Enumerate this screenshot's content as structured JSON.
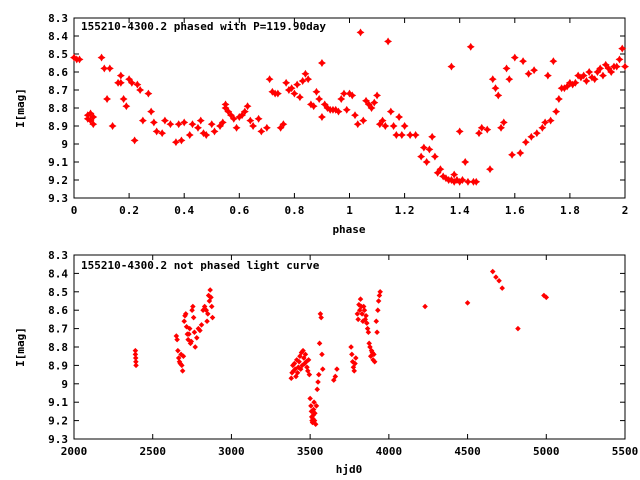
{
  "chart_data": [
    {
      "type": "scatter",
      "title": "155210-4300.2 phased with P=119.90day",
      "xlabel": "phase",
      "ylabel": "I[mag]",
      "xlim": [
        0,
        2
      ],
      "ylim": [
        9.3,
        8.3
      ],
      "y_inverted": true,
      "xticks": [
        0,
        0.2,
        0.4,
        0.6,
        0.8,
        1,
        1.2,
        1.4,
        1.6,
        1.8,
        2
      ],
      "xtick_labels": [
        "0",
        "0.2",
        "0.4",
        "0.6",
        "0.8",
        "1",
        "1.2",
        "1.4",
        "1.6",
        "1.8",
        "2"
      ],
      "yticks": [
        8.3,
        8.4,
        8.5,
        8.6,
        8.7,
        8.8,
        8.9,
        9,
        9.1,
        9.2,
        9.3
      ],
      "ytick_labels": [
        "8.3",
        "8.4",
        "8.5",
        "8.6",
        "8.7",
        "8.8",
        "8.9",
        "9",
        "9.1",
        "9.2",
        "9.3"
      ],
      "grid": false,
      "marker_color": "#ff0000",
      "points": [
        [
          0.0,
          8.52
        ],
        [
          0.01,
          8.53
        ],
        [
          0.02,
          8.53
        ],
        [
          0.05,
          8.84
        ],
        [
          0.05,
          8.86
        ],
        [
          0.06,
          8.83
        ],
        [
          0.06,
          8.87
        ],
        [
          0.07,
          8.89
        ],
        [
          0.07,
          8.85
        ],
        [
          0.1,
          8.52
        ],
        [
          0.11,
          8.58
        ],
        [
          0.12,
          8.75
        ],
        [
          0.13,
          8.58
        ],
        [
          0.14,
          8.9
        ],
        [
          0.16,
          8.66
        ],
        [
          0.17,
          8.62
        ],
        [
          0.17,
          8.66
        ],
        [
          0.18,
          8.75
        ],
        [
          0.19,
          8.79
        ],
        [
          0.2,
          8.64
        ],
        [
          0.21,
          8.66
        ],
        [
          0.22,
          8.98
        ],
        [
          0.23,
          8.67
        ],
        [
          0.24,
          8.7
        ],
        [
          0.25,
          8.87
        ],
        [
          0.27,
          8.72
        ],
        [
          0.28,
          8.82
        ],
        [
          0.29,
          8.88
        ],
        [
          0.3,
          8.93
        ],
        [
          0.32,
          8.94
        ],
        [
          0.33,
          8.87
        ],
        [
          0.35,
          8.89
        ],
        [
          0.37,
          8.99
        ],
        [
          0.38,
          8.89
        ],
        [
          0.39,
          8.98
        ],
        [
          0.4,
          8.88
        ],
        [
          0.42,
          8.95
        ],
        [
          0.43,
          8.89
        ],
        [
          0.45,
          8.91
        ],
        [
          0.46,
          8.87
        ],
        [
          0.47,
          8.94
        ],
        [
          0.48,
          8.95
        ],
        [
          0.5,
          8.89
        ],
        [
          0.51,
          8.93
        ],
        [
          0.53,
          8.9
        ],
        [
          0.54,
          8.88
        ],
        [
          0.55,
          8.78
        ],
        [
          0.55,
          8.8
        ],
        [
          0.56,
          8.82
        ],
        [
          0.57,
          8.84
        ],
        [
          0.58,
          8.86
        ],
        [
          0.59,
          8.91
        ],
        [
          0.6,
          8.85
        ],
        [
          0.61,
          8.84
        ],
        [
          0.62,
          8.82
        ],
        [
          0.63,
          8.79
        ],
        [
          0.64,
          8.87
        ],
        [
          0.65,
          8.9
        ],
        [
          0.67,
          8.86
        ],
        [
          0.68,
          8.93
        ],
        [
          0.7,
          8.91
        ],
        [
          0.71,
          8.64
        ],
        [
          0.72,
          8.71
        ],
        [
          0.73,
          8.72
        ],
        [
          0.74,
          8.72
        ],
        [
          0.75,
          8.91
        ],
        [
          0.76,
          8.89
        ],
        [
          0.77,
          8.66
        ],
        [
          0.78,
          8.7
        ],
        [
          0.79,
          8.69
        ],
        [
          0.8,
          8.72
        ],
        [
          0.81,
          8.67
        ],
        [
          0.82,
          8.74
        ],
        [
          0.83,
          8.65
        ],
        [
          0.84,
          8.61
        ],
        [
          0.85,
          8.64
        ],
        [
          0.86,
          8.78
        ],
        [
          0.87,
          8.79
        ],
        [
          0.88,
          8.71
        ],
        [
          0.89,
          8.75
        ],
        [
          0.9,
          8.55
        ],
        [
          0.9,
          8.85
        ],
        [
          0.91,
          8.78
        ],
        [
          0.92,
          8.8
        ],
        [
          0.93,
          8.81
        ],
        [
          0.94,
          8.81
        ],
        [
          0.95,
          8.81
        ],
        [
          0.96,
          8.82
        ],
        [
          0.97,
          8.75
        ],
        [
          0.98,
          8.72
        ],
        [
          0.99,
          8.81
        ],
        [
          1.0,
          8.72
        ],
        [
          1.01,
          8.73
        ],
        [
          1.02,
          8.84
        ],
        [
          1.03,
          8.89
        ],
        [
          1.04,
          8.38
        ],
        [
          1.05,
          8.87
        ],
        [
          1.06,
          8.76
        ],
        [
          1.07,
          8.78
        ],
        [
          1.08,
          8.8
        ],
        [
          1.09,
          8.77
        ],
        [
          1.1,
          8.73
        ],
        [
          1.11,
          8.89
        ],
        [
          1.12,
          8.87
        ],
        [
          1.13,
          8.9
        ],
        [
          1.14,
          8.43
        ],
        [
          1.15,
          8.82
        ],
        [
          1.16,
          8.9
        ],
        [
          1.17,
          8.95
        ],
        [
          1.18,
          8.85
        ],
        [
          1.19,
          8.95
        ],
        [
          1.2,
          8.9
        ],
        [
          1.22,
          8.95
        ],
        [
          1.24,
          8.95
        ],
        [
          1.26,
          9.07
        ],
        [
          1.27,
          9.02
        ],
        [
          1.28,
          9.1
        ],
        [
          1.29,
          9.03
        ],
        [
          1.3,
          8.96
        ],
        [
          1.31,
          9.07
        ],
        [
          1.32,
          9.16
        ],
        [
          1.33,
          9.14
        ],
        [
          1.34,
          9.18
        ],
        [
          1.35,
          9.19
        ],
        [
          1.36,
          9.2
        ],
        [
          1.37,
          8.57
        ],
        [
          1.37,
          9.2
        ],
        [
          1.38,
          9.17
        ],
        [
          1.38,
          9.21
        ],
        [
          1.39,
          9.2
        ],
        [
          1.4,
          9.21
        ],
        [
          1.4,
          8.93
        ],
        [
          1.41,
          9.2
        ],
        [
          1.42,
          9.1
        ],
        [
          1.43,
          9.21
        ],
        [
          1.44,
          8.46
        ],
        [
          1.45,
          9.21
        ],
        [
          1.46,
          9.21
        ],
        [
          1.47,
          8.94
        ],
        [
          1.48,
          8.91
        ],
        [
          1.5,
          8.92
        ],
        [
          1.51,
          9.14
        ],
        [
          1.52,
          8.64
        ],
        [
          1.53,
          8.69
        ],
        [
          1.54,
          8.73
        ],
        [
          1.55,
          8.91
        ],
        [
          1.56,
          8.88
        ],
        [
          1.57,
          8.58
        ],
        [
          1.58,
          8.64
        ],
        [
          1.59,
          9.06
        ],
        [
          1.6,
          8.52
        ],
        [
          1.62,
          9.05
        ],
        [
          1.63,
          8.54
        ],
        [
          1.64,
          8.99
        ],
        [
          1.65,
          8.61
        ],
        [
          1.66,
          8.96
        ],
        [
          1.67,
          8.59
        ],
        [
          1.68,
          8.94
        ],
        [
          1.7,
          8.91
        ],
        [
          1.71,
          8.88
        ],
        [
          1.72,
          8.62
        ],
        [
          1.73,
          8.87
        ],
        [
          1.74,
          8.54
        ],
        [
          1.75,
          8.82
        ],
        [
          1.76,
          8.75
        ],
        [
          1.77,
          8.69
        ],
        [
          1.78,
          8.69
        ],
        [
          1.79,
          8.68
        ],
        [
          1.8,
          8.66
        ],
        [
          1.81,
          8.67
        ],
        [
          1.82,
          8.66
        ],
        [
          1.83,
          8.62
        ],
        [
          1.84,
          8.63
        ],
        [
          1.85,
          8.62
        ],
        [
          1.86,
          8.65
        ],
        [
          1.87,
          8.6
        ],
        [
          1.88,
          8.63
        ],
        [
          1.89,
          8.64
        ],
        [
          1.9,
          8.6
        ],
        [
          1.91,
          8.58
        ],
        [
          1.92,
          8.62
        ],
        [
          1.93,
          8.56
        ],
        [
          1.94,
          8.58
        ],
        [
          1.95,
          8.6
        ],
        [
          1.96,
          8.57
        ],
        [
          1.97,
          8.57
        ],
        [
          1.98,
          8.53
        ],
        [
          1.99,
          8.47
        ],
        [
          2.0,
          8.57
        ]
      ]
    },
    {
      "type": "scatter",
      "title": "155210-4300.2 not phased light curve",
      "xlabel": "hjd0",
      "ylabel": "I[mag]",
      "xlim": [
        2000,
        5500
      ],
      "ylim": [
        9.3,
        8.3
      ],
      "y_inverted": true,
      "xticks": [
        2000,
        2500,
        3000,
        3500,
        4000,
        4500,
        5000,
        5500
      ],
      "xtick_labels": [
        "2000",
        "2500",
        "3000",
        "3500",
        "4000",
        "4500",
        "5000",
        "5500"
      ],
      "yticks": [
        8.3,
        8.4,
        8.5,
        8.6,
        8.7,
        8.8,
        8.9,
        9,
        9.1,
        9.2,
        9.3
      ],
      "ytick_labels": [
        "8.3",
        "8.4",
        "8.5",
        "8.6",
        "8.7",
        "8.8",
        "8.9",
        "9",
        "9.1",
        "9.2",
        "9.3"
      ],
      "grid": false,
      "marker_color": "#ff0000",
      "points": [
        [
          2390,
          8.82
        ],
        [
          2390,
          8.84
        ],
        [
          2392,
          8.86
        ],
        [
          2393,
          8.88
        ],
        [
          2394,
          8.9
        ],
        [
          2650,
          8.74
        ],
        [
          2655,
          8.76
        ],
        [
          2660,
          8.82
        ],
        [
          2665,
          8.86
        ],
        [
          2670,
          8.88
        ],
        [
          2675,
          8.89
        ],
        [
          2680,
          8.84
        ],
        [
          2685,
          8.9
        ],
        [
          2690,
          8.93
        ],
        [
          2695,
          8.85
        ],
        [
          2700,
          8.66
        ],
        [
          2705,
          8.63
        ],
        [
          2710,
          8.62
        ],
        [
          2715,
          8.69
        ],
        [
          2720,
          8.73
        ],
        [
          2725,
          8.76
        ],
        [
          2730,
          8.73
        ],
        [
          2735,
          8.7
        ],
        [
          2740,
          8.78
        ],
        [
          2745,
          8.77
        ],
        [
          2750,
          8.6
        ],
        [
          2755,
          8.58
        ],
        [
          2760,
          8.64
        ],
        [
          2765,
          8.72
        ],
        [
          2770,
          8.8
        ],
        [
          2780,
          8.75
        ],
        [
          2790,
          8.7
        ],
        [
          2800,
          8.71
        ],
        [
          2810,
          8.68
        ],
        [
          2820,
          8.6
        ],
        [
          2830,
          8.58
        ],
        [
          2840,
          8.6
        ],
        [
          2845,
          8.66
        ],
        [
          2850,
          8.62
        ],
        [
          2855,
          8.52
        ],
        [
          2860,
          8.55
        ],
        [
          2865,
          8.49
        ],
        [
          2870,
          8.53
        ],
        [
          2875,
          8.58
        ],
        [
          2880,
          8.64
        ],
        [
          3380,
          8.97
        ],
        [
          3385,
          8.94
        ],
        [
          3390,
          8.9
        ],
        [
          3395,
          8.93
        ],
        [
          3400,
          8.89
        ],
        [
          3405,
          8.92
        ],
        [
          3410,
          8.96
        ],
        [
          3415,
          8.87
        ],
        [
          3420,
          8.94
        ],
        [
          3425,
          8.91
        ],
        [
          3430,
          8.88
        ],
        [
          3435,
          8.85
        ],
        [
          3440,
          8.92
        ],
        [
          3445,
          8.83
        ],
        [
          3450,
          8.9
        ],
        [
          3455,
          8.82
        ],
        [
          3460,
          8.86
        ],
        [
          3465,
          8.89
        ],
        [
          3470,
          8.84
        ],
        [
          3475,
          8.88
        ],
        [
          3480,
          8.91
        ],
        [
          3485,
          8.93
        ],
        [
          3490,
          8.87
        ],
        [
          3495,
          8.95
        ],
        [
          3500,
          9.08
        ],
        [
          3505,
          9.12
        ],
        [
          3508,
          9.15
        ],
        [
          3510,
          9.18
        ],
        [
          3512,
          9.2
        ],
        [
          3515,
          9.21
        ],
        [
          3518,
          9.19
        ],
        [
          3520,
          9.17
        ],
        [
          3522,
          9.14
        ],
        [
          3525,
          9.1
        ],
        [
          3528,
          9.2
        ],
        [
          3530,
          9.16
        ],
        [
          3535,
          9.22
        ],
        [
          3540,
          9.12
        ],
        [
          3545,
          9.03
        ],
        [
          3550,
          8.99
        ],
        [
          3555,
          8.95
        ],
        [
          3560,
          8.78
        ],
        [
          3565,
          8.62
        ],
        [
          3570,
          8.64
        ],
        [
          3575,
          8.84
        ],
        [
          3580,
          8.92
        ],
        [
          3650,
          8.98
        ],
        [
          3660,
          8.96
        ],
        [
          3670,
          8.92
        ],
        [
          3760,
          8.8
        ],
        [
          3765,
          8.84
        ],
        [
          3770,
          8.88
        ],
        [
          3775,
          8.91
        ],
        [
          3780,
          8.93
        ],
        [
          3785,
          8.89
        ],
        [
          3790,
          8.86
        ],
        [
          3800,
          8.62
        ],
        [
          3805,
          8.65
        ],
        [
          3810,
          8.57
        ],
        [
          3815,
          8.6
        ],
        [
          3820,
          8.54
        ],
        [
          3825,
          8.58
        ],
        [
          3830,
          8.62
        ],
        [
          3835,
          8.66
        ],
        [
          3840,
          8.58
        ],
        [
          3845,
          8.6
        ],
        [
          3850,
          8.65
        ],
        [
          3855,
          8.63
        ],
        [
          3860,
          8.67
        ],
        [
          3865,
          8.7
        ],
        [
          3870,
          8.72
        ],
        [
          3875,
          8.78
        ],
        [
          3880,
          8.8
        ],
        [
          3885,
          8.85
        ],
        [
          3890,
          8.82
        ],
        [
          3895,
          8.83
        ],
        [
          3900,
          8.87
        ],
        [
          3905,
          8.84
        ],
        [
          3910,
          8.88
        ],
        [
          3920,
          8.66
        ],
        [
          3925,
          8.72
        ],
        [
          3930,
          8.6
        ],
        [
          3935,
          8.55
        ],
        [
          3940,
          8.52
        ],
        [
          3945,
          8.5
        ],
        [
          4230,
          8.58
        ],
        [
          4500,
          8.56
        ],
        [
          4660,
          8.39
        ],
        [
          4680,
          8.42
        ],
        [
          4700,
          8.44
        ],
        [
          4720,
          8.48
        ],
        [
          4820,
          8.7
        ],
        [
          4985,
          8.52
        ],
        [
          5000,
          8.53
        ]
      ]
    }
  ]
}
